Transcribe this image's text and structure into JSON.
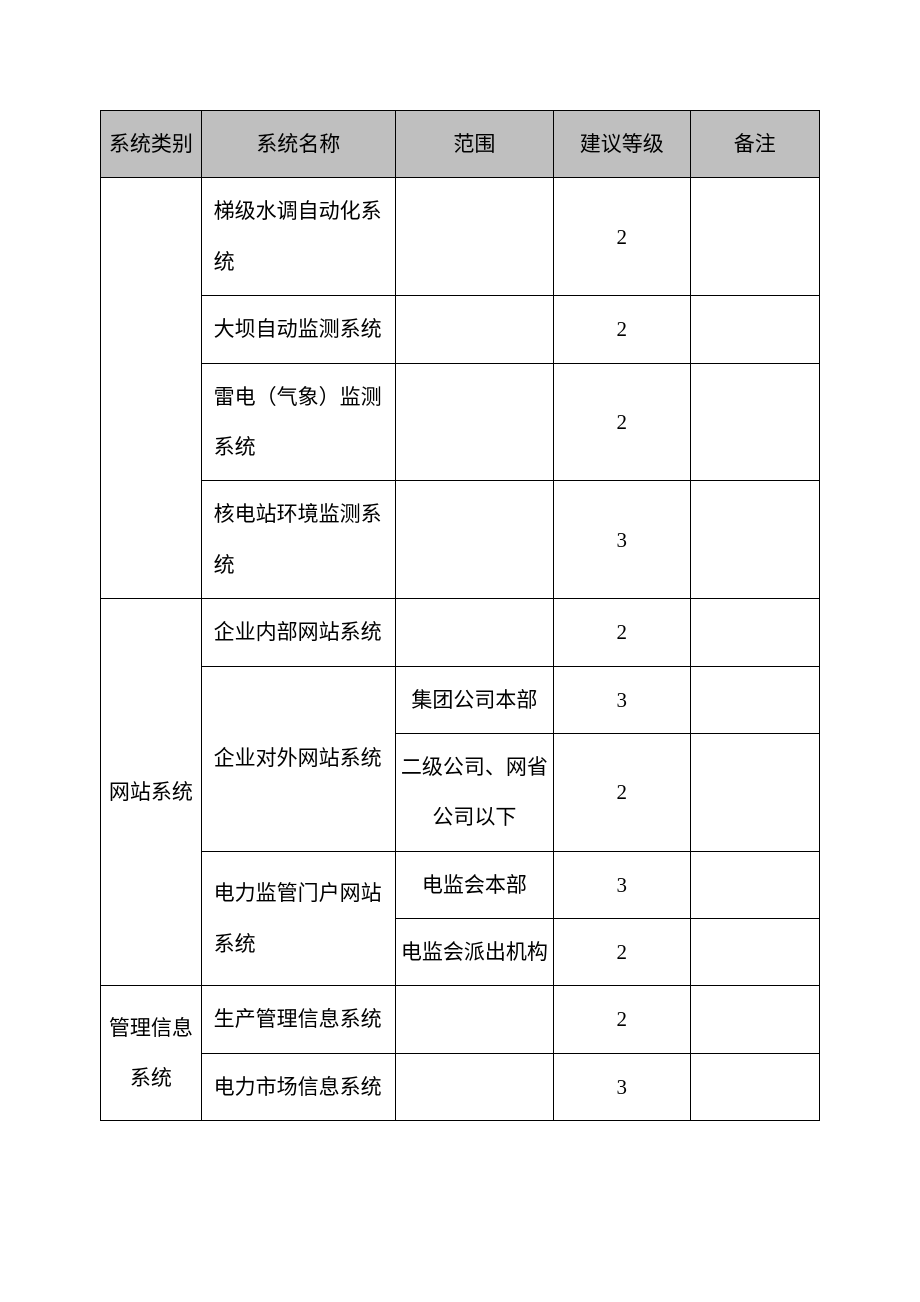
{
  "headers": {
    "category": "系统类别",
    "name": "系统名称",
    "scope": "范围",
    "level": "建议等级",
    "remark": "备注"
  },
  "rows": {
    "r1_name": "梯级水调自动化系统",
    "r1_level": "2",
    "r2_name": "大坝自动监测系统",
    "r2_level": "2",
    "r3_name": "雷电（气象）监测系统",
    "r3_level": "2",
    "r4_name": "核电站环境监测系统",
    "r4_level": "3",
    "cat_website": "网站系统",
    "r5_name": "企业内部网站系统",
    "r5_level": "2",
    "r6_name": "企业对外网站系统",
    "r6_scope": "集团公司本部",
    "r6_level": "3",
    "r7_scope": "二级公司、网省公司以下",
    "r7_level": "2",
    "r8_name": "电力监管门户网站系统",
    "r8_scope": "电监会本部",
    "r8_level": "3",
    "r9_scope": "电监会派出机构",
    "r9_level": "2",
    "cat_mgmt": "管理信息系统",
    "r10_name": "生产管理信息系统",
    "r10_level": "2",
    "r11_name": "电力市场信息系统",
    "r11_level": "3"
  }
}
